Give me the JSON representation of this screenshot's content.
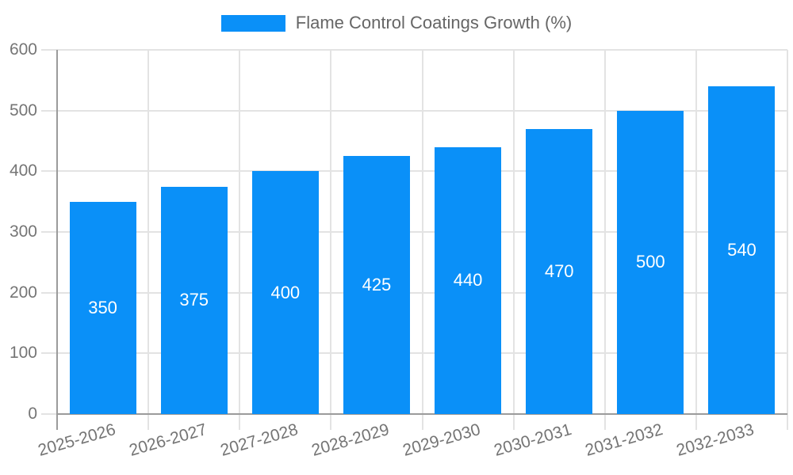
{
  "legend": {
    "label": "Flame Control Coatings Growth (%)"
  },
  "chart_data": {
    "type": "bar",
    "title": "",
    "categories": [
      "2025-2026",
      "2026-2027",
      "2027-2028",
      "2028-2029",
      "2029-2030",
      "2030-2031",
      "2031-2032",
      "2032-2033"
    ],
    "series": [
      {
        "name": "Flame Control Coatings Growth (%)",
        "values": [
          350,
          375,
          400,
          425,
          440,
          470,
          500,
          540
        ]
      }
    ],
    "value_labels_shown_inside_bars": true,
    "xlabel": "",
    "ylabel": "",
    "ylim": [
      0,
      600
    ],
    "yticks": [
      0,
      100,
      200,
      300,
      400,
      500,
      600
    ],
    "grid": true,
    "legend_position": "top-center",
    "x_label_rotation_deg": -16,
    "colors": {
      "bar": "#0a90f8",
      "axis": "#9b9b9b",
      "grid": "#e3e3e3",
      "tick_label": "#757575",
      "legend_text": "#666666",
      "value_label": "#ffffff",
      "background": "#ffffff"
    }
  }
}
